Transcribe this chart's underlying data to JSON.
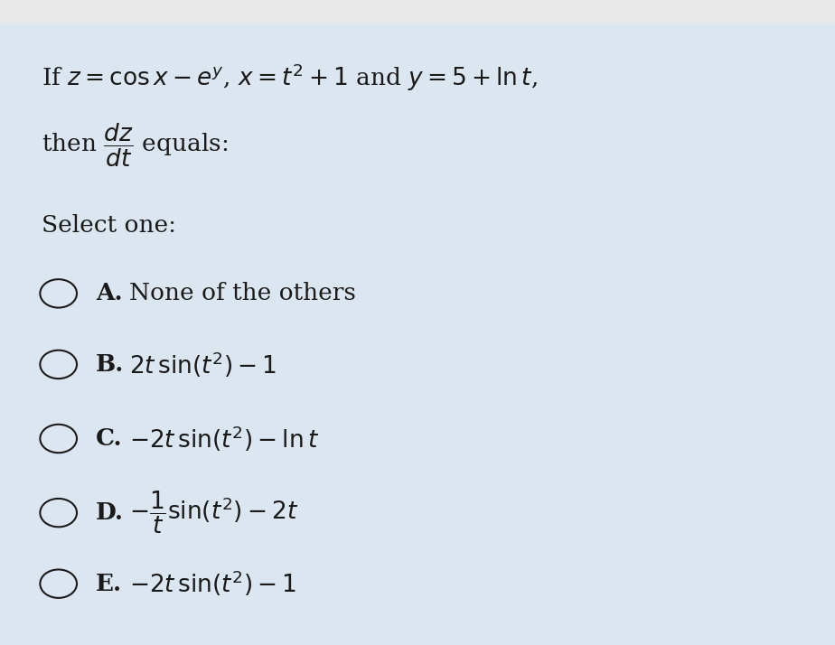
{
  "background_color": "#dce6f0",
  "top_bar_color": "#e8e8e8",
  "text_color": "#1a1a1a",
  "question_line1": "If $z = \\cos x - e^y$, $x = t^2 + 1$ and $y = 5 + \\ln t$,",
  "question_line2": "then $\\dfrac{dz}{dt}$ equals:",
  "select_one": "Select one:",
  "options": [
    {
      "label": "A.",
      "text": "None of the others"
    },
    {
      "label": "B.",
      "text": "$2t\\,\\sin(t^2) - 1$"
    },
    {
      "label": "C.",
      "text": "$-2t\\,\\sin(t^2) - \\ln t$"
    },
    {
      "label": "D.",
      "text": "$-\\dfrac{1}{t}\\sin(t^2) - 2t$"
    },
    {
      "label": "E.",
      "text": "$-2t\\,\\sin(t^2) - 1$"
    }
  ],
  "figsize": [
    9.24,
    7.14
  ],
  "dpi": 100
}
